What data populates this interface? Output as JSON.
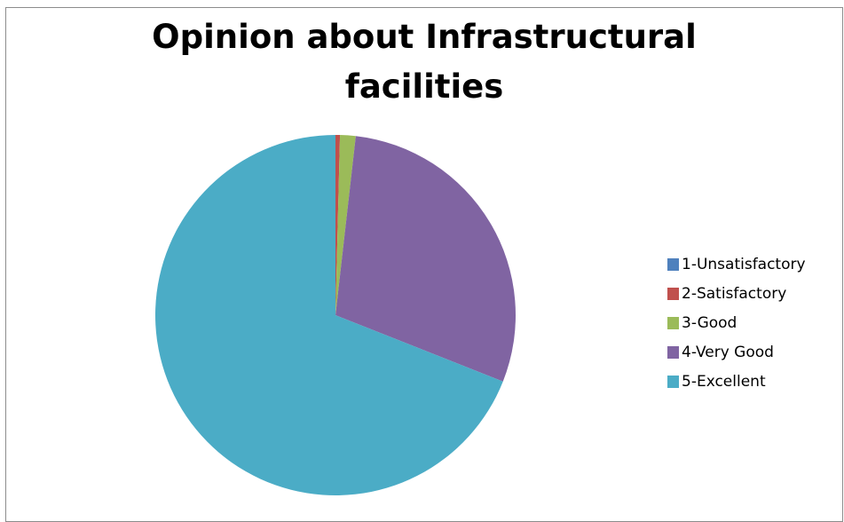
{
  "chart_data": {
    "type": "pie",
    "title": "Opinion about  Infrastructural facilities",
    "categories": [
      "1-Unsatisfactory",
      "2-Satisfactory",
      "3-Good",
      "4-Very Good",
      "5-Excellent"
    ],
    "values": [
      0,
      0.4,
      1.4,
      29.2,
      69
    ],
    "colors": [
      "#4f81bd",
      "#c0504d",
      "#9bbb59",
      "#8064a2",
      "#4bacc6"
    ],
    "legend_position": "right"
  }
}
